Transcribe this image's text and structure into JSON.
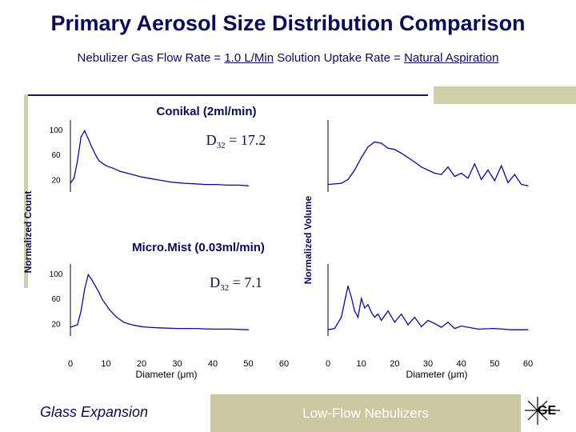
{
  "slide": {
    "title": "Primary Aerosol Size Distribution Comparison",
    "subtitle_prefix": "Nebulizer Gas Flow Rate = ",
    "subtitle_flow": "1.0 L/Min",
    "subtitle_mid": "  Solution Uptake Rate = ",
    "subtitle_uptake": "Natural Aspiration",
    "brand": "Glass Expansion",
    "footer": "Low-Flow Nebulizers",
    "logo_text": "GE"
  },
  "colors": {
    "title": "#0a0a5a",
    "line": "#0a0a9a",
    "accent_bar": "#c9c8a0"
  },
  "chart_data": [
    {
      "type": "line",
      "title": "Conikal (2ml/min)",
      "annotation": {
        "main": "D",
        "sub": "32",
        "rest": " = 17.2"
      },
      "ylabel": "Normalized Count",
      "y_ticks": [
        100,
        60,
        20
      ],
      "x_ticks": [],
      "x": [
        0,
        1,
        2,
        3,
        4,
        5,
        6,
        7,
        8,
        10,
        12,
        14,
        16,
        18,
        20,
        22,
        24,
        26,
        28,
        30,
        32,
        35,
        38,
        41,
        44,
        47,
        50
      ],
      "values": [
        14,
        22,
        50,
        88,
        98,
        85,
        72,
        60,
        50,
        42,
        38,
        33,
        30,
        27,
        24,
        22,
        20,
        18,
        16,
        15,
        14,
        13,
        12,
        12,
        11,
        11,
        10
      ]
    },
    {
      "type": "line",
      "title": "",
      "ylabel": "Normalized Volume",
      "y_ticks": [],
      "x_ticks": [],
      "x": [
        0,
        4,
        6,
        8,
        10,
        12,
        14,
        16,
        18,
        20,
        22,
        24,
        26,
        28,
        30,
        32,
        34,
        36,
        38,
        40,
        42,
        44,
        46,
        48,
        50,
        52,
        54,
        56,
        58,
        60
      ],
      "values": [
        12,
        14,
        20,
        35,
        55,
        72,
        80,
        78,
        70,
        68,
        62,
        55,
        48,
        40,
        35,
        30,
        28,
        40,
        25,
        30,
        22,
        45,
        20,
        35,
        18,
        42,
        15,
        28,
        12,
        10
      ]
    },
    {
      "type": "line",
      "title": "Micro.Mist (0.03ml/min)",
      "annotation": {
        "main": "D",
        "sub": "32",
        "rest": " = 7.1"
      },
      "ylabel": "",
      "y_ticks": [
        100,
        60,
        20
      ],
      "x_ticks": [
        "0",
        "10",
        "20",
        "30",
        "40",
        "50",
        "60"
      ],
      "xlabel": "Diameter (μm)",
      "x": [
        0,
        2,
        3,
        4,
        5,
        6,
        7,
        8,
        9,
        10,
        11,
        12,
        13,
        14,
        15,
        16,
        18,
        20,
        22,
        25,
        30,
        35,
        40,
        45,
        50
      ],
      "values": [
        14,
        18,
        40,
        75,
        98,
        90,
        80,
        70,
        58,
        50,
        42,
        36,
        30,
        26,
        22,
        20,
        17,
        15,
        14,
        13,
        12,
        12,
        11,
        11,
        10
      ]
    },
    {
      "type": "line",
      "title": "",
      "ylabel": "",
      "y_ticks": [],
      "x_ticks": [
        "0",
        "10",
        "20",
        "30",
        "40",
        "50",
        "60"
      ],
      "xlabel": "Diameter (μm)",
      "x": [
        0,
        2,
        4,
        5,
        6,
        7,
        8,
        9,
        10,
        11,
        12,
        13,
        14,
        15,
        16,
        18,
        20,
        22,
        24,
        26,
        28,
        30,
        32,
        34,
        36,
        38,
        40,
        45,
        50,
        55,
        60
      ],
      "values": [
        10,
        12,
        30,
        55,
        80,
        62,
        40,
        30,
        60,
        45,
        50,
        38,
        30,
        35,
        25,
        40,
        22,
        35,
        18,
        30,
        15,
        25,
        20,
        14,
        22,
        12,
        16,
        11,
        12,
        10,
        10
      ]
    }
  ]
}
